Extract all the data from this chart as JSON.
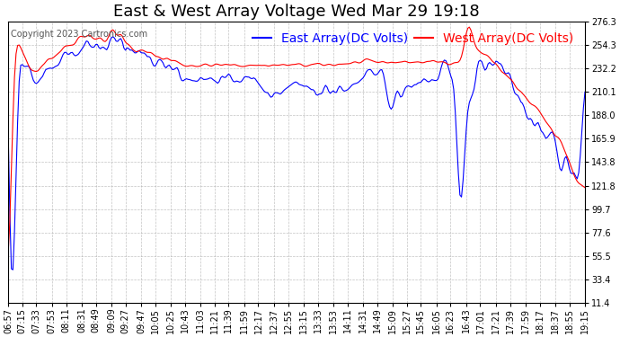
{
  "title": "East & West Array Voltage Wed Mar 29 19:18",
  "copyright": "Copyright 2023 Cartronics.com",
  "east_label": "East Array(DC Volts)",
  "west_label": "West Array(DC Volts)",
  "east_color": "#0000ff",
  "west_color": "#ff0000",
  "background_color": "#ffffff",
  "grid_color": "#aaaaaa",
  "ylim": [
    11.4,
    276.3
  ],
  "yticks": [
    11.4,
    33.4,
    55.5,
    77.6,
    99.7,
    121.8,
    143.8,
    165.9,
    188.0,
    210.1,
    232.2,
    254.3,
    276.3
  ],
  "title_fontsize": 13,
  "legend_fontsize": 10,
  "tick_fontsize": 7,
  "linewidth": 0.8
}
